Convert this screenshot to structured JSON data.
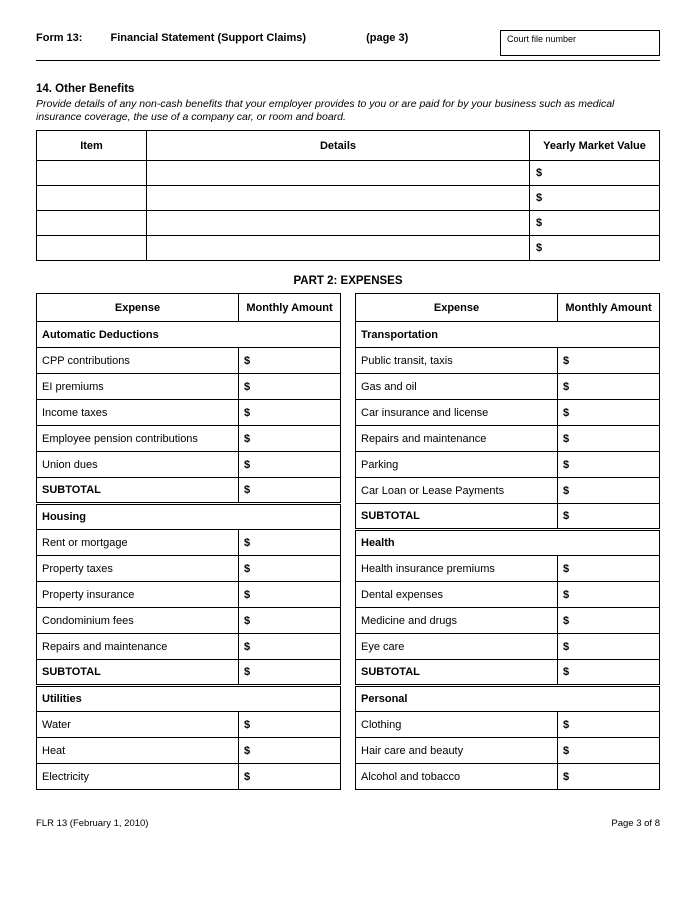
{
  "header": {
    "form_label": "Form 13:",
    "title": "Financial Statement (Support Claims)",
    "page_label": "(page 3)",
    "court_box_label": "Court file number"
  },
  "section14": {
    "heading": "14. Other Benefits",
    "description": "Provide details of any non-cash benefits that your employer provides to you or are paid for by your business such as medical insurance coverage, the use of a company car, or room and board.",
    "columns": {
      "item": "Item",
      "details": "Details",
      "value": "Yearly Market Value"
    },
    "currency": "$",
    "row_count": 4
  },
  "part2": {
    "title": "PART 2: EXPENSES",
    "columns": {
      "expense": "Expense",
      "amount": "Monthly Amount"
    },
    "currency": "$",
    "subtotal_label": "SUBTOTAL",
    "left": [
      {
        "name": "Automatic Deductions",
        "items": [
          "CPP contributions",
          "EI premiums",
          "Income taxes",
          "Employee pension contributions",
          "Union dues"
        ],
        "subtotal": true
      },
      {
        "name": "Housing",
        "items": [
          "Rent or mortgage",
          "Property taxes",
          "Property insurance",
          "Condominium fees",
          "Repairs and maintenance"
        ],
        "subtotal": true
      },
      {
        "name": "Utilities",
        "items": [
          "Water",
          "Heat",
          "Electricity"
        ],
        "subtotal": false
      }
    ],
    "right": [
      {
        "name": "Transportation",
        "items": [
          "Public transit, taxis",
          "Gas and oil",
          "Car insurance and license",
          "Repairs and maintenance",
          "Parking",
          "Car Loan or Lease Payments"
        ],
        "subtotal": true
      },
      {
        "name": "Health",
        "items": [
          "Health insurance premiums",
          "Dental expenses",
          "Medicine and drugs",
          "Eye care"
        ],
        "subtotal": true
      },
      {
        "name": "Personal",
        "items": [
          "Clothing",
          "Hair care and beauty",
          "Alcohol and tobacco"
        ],
        "subtotal": false
      }
    ]
  },
  "footer": {
    "left": "FLR 13 (February 1, 2010)",
    "right": "Page 3 of 8"
  }
}
